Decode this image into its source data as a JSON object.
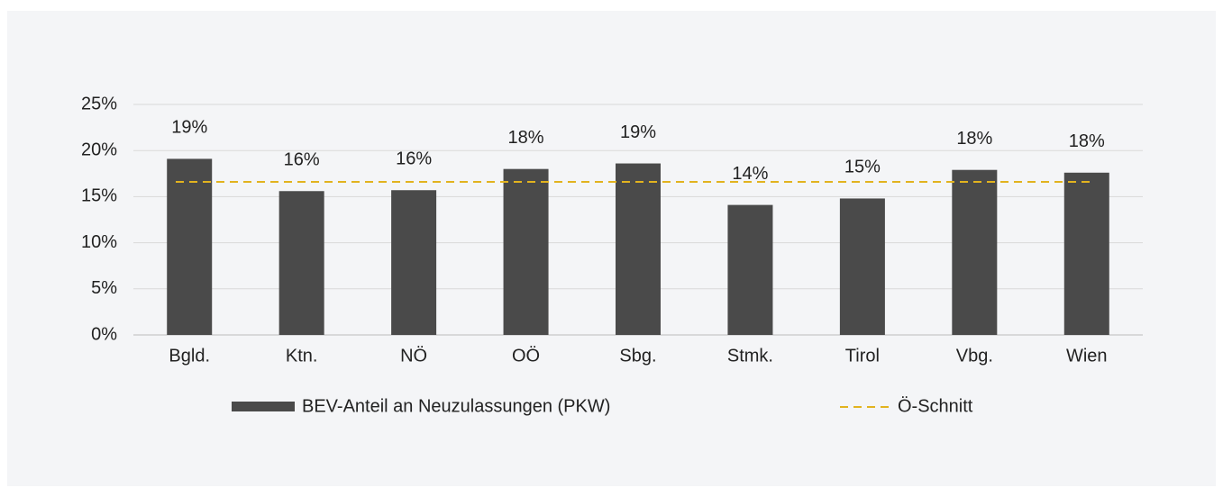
{
  "chart_data": {
    "type": "bar",
    "categories": [
      "Bgld.",
      "Ktn.",
      "NÖ",
      "OÖ",
      "Sbg.",
      "Stmk.",
      "Tirol",
      "Vbg.",
      "Wien"
    ],
    "series": [
      {
        "name": "BEV-Anteil an Neuzulassungen (PKW)",
        "color": "#4a4a4a",
        "values": [
          19.1,
          15.6,
          15.7,
          18.0,
          18.6,
          14.1,
          14.8,
          17.9,
          17.6
        ],
        "value_labels": [
          "19%",
          "16%",
          "16%",
          "18%",
          "19%",
          "14%",
          "15%",
          "18%",
          "18%"
        ]
      }
    ],
    "average": {
      "name": "Ö-Schnitt",
      "value": 16.6,
      "color": "#e2b31f"
    },
    "ylim": [
      0,
      25
    ],
    "yticks": [
      {
        "value": 0,
        "label": "0%"
      },
      {
        "value": 5,
        "label": "5%"
      },
      {
        "value": 10,
        "label": "10%"
      },
      {
        "value": 15,
        "label": "15%"
      },
      {
        "value": 20,
        "label": "20%"
      },
      {
        "value": 25,
        "label": "25%"
      }
    ],
    "grid": true
  }
}
